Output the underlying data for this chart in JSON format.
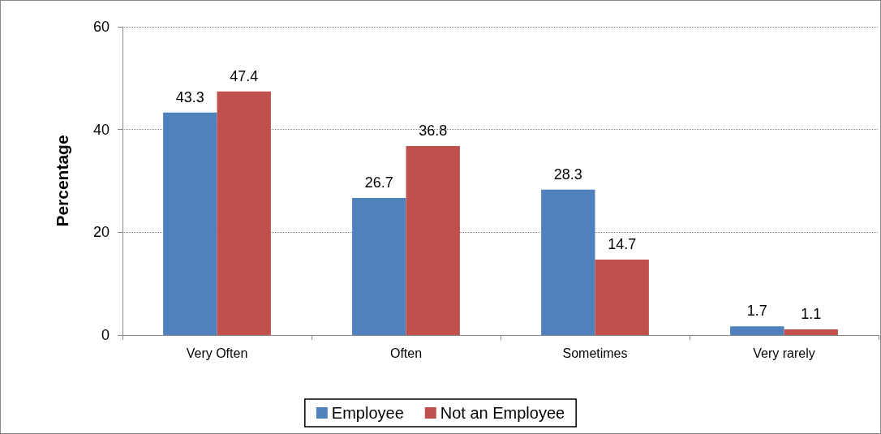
{
  "chart_data": {
    "type": "bar",
    "ylabel": "Percentage",
    "categories": [
      "Very Often",
      "Often",
      "Sometimes",
      "Very rarely"
    ],
    "series": [
      {
        "name": "Employee",
        "color": "#4f81bd",
        "values": [
          43.3,
          26.7,
          28.3,
          1.7
        ]
      },
      {
        "name": "Not an Employee",
        "color": "#c0504d",
        "values": [
          47.4,
          36.8,
          14.7,
          1.1
        ]
      }
    ],
    "ylim": [
      0,
      60
    ],
    "yticks": [
      0,
      20,
      40,
      60
    ],
    "grid": "y",
    "legend": "bottom",
    "data_labels": true
  }
}
